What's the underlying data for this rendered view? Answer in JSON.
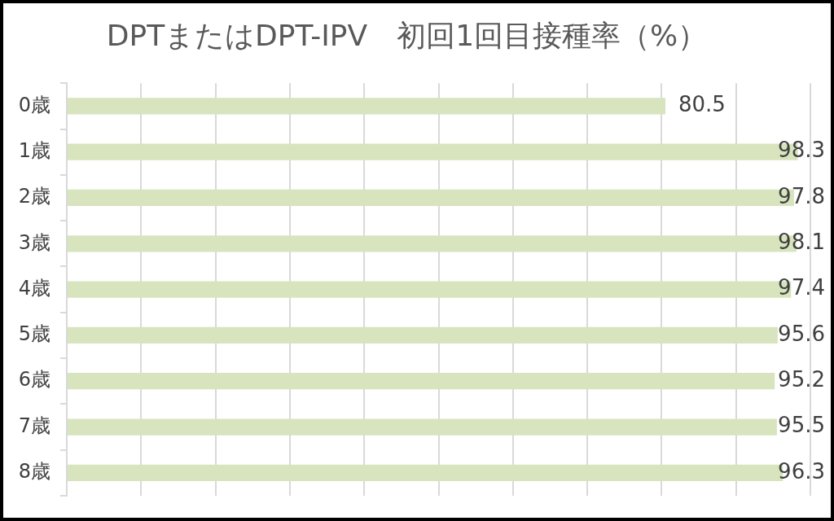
{
  "chart_data": {
    "type": "bar",
    "title": "DPTまたはDPT-IPV　初回1回目接種率（%）",
    "orientation": "horizontal",
    "categories": [
      "0歳",
      "1歳",
      "2歳",
      "3歳",
      "4歳",
      "5歳",
      "6歳",
      "7歳",
      "8歳"
    ],
    "values": [
      80.5,
      98.3,
      97.8,
      98.1,
      97.4,
      95.6,
      95.2,
      95.5,
      96.3
    ],
    "color": "#d7e4bd",
    "xlim": [
      0,
      100
    ],
    "xticks": [
      {
        "value": 0,
        "label": null
      },
      {
        "value": 10,
        "label": null
      },
      {
        "value": 20,
        "label": null
      },
      {
        "value": 30,
        "label": null
      },
      {
        "value": 40,
        "label": null
      },
      {
        "value": 50,
        "label": null
      },
      {
        "value": 60,
        "label": null
      },
      {
        "value": 70,
        "label": null
      },
      {
        "value": 80,
        "label": null
      },
      {
        "value": 90,
        "label": null
      },
      {
        "value": 100,
        "label": null
      }
    ],
    "grid": "x",
    "tick_labels": "y",
    "data_labels": true
  }
}
